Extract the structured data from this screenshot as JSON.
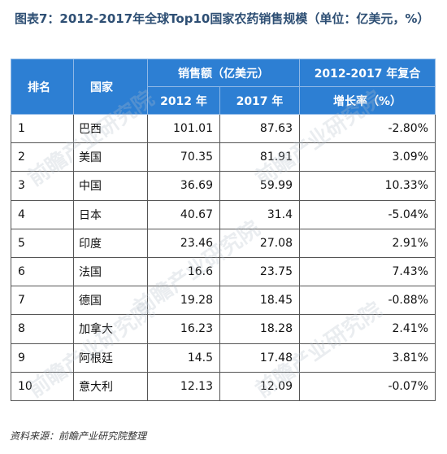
{
  "title": "图表7：2012-2017年全球Top10国家农药销售规模（单位：亿美元，%）",
  "headers": {
    "rank": "排名",
    "country": "国家",
    "sales_group": "销售额（亿美元）",
    "y2012": "2012 年",
    "y2017": "2017 年",
    "cagr_line1": "2012-2017 年复合",
    "cagr_line2": "增长率（%）"
  },
  "rows": [
    {
      "rank": "1",
      "country": "巴西",
      "v2012": "101.01",
      "v2017": "87.63",
      "cagr": "-2.80%"
    },
    {
      "rank": "2",
      "country": "美国",
      "v2012": "70.35",
      "v2017": "81.91",
      "cagr": "3.09%"
    },
    {
      "rank": "3",
      "country": "中国",
      "v2012": "36.69",
      "v2017": "59.99",
      "cagr": "10.33%"
    },
    {
      "rank": "4",
      "country": "日本",
      "v2012": "40.67",
      "v2017": "31.4",
      "cagr": "-5.04%"
    },
    {
      "rank": "5",
      "country": "印度",
      "v2012": "23.46",
      "v2017": "27.08",
      "cagr": "2.91%"
    },
    {
      "rank": "6",
      "country": "法国",
      "v2012": "16.6",
      "v2017": "23.75",
      "cagr": "7.43%"
    },
    {
      "rank": "7",
      "country": "德国",
      "v2012": "19.28",
      "v2017": "18.45",
      "cagr": "-0.88%"
    },
    {
      "rank": "8",
      "country": "加拿大",
      "v2012": "16.23",
      "v2017": "18.28",
      "cagr": "2.41%"
    },
    {
      "rank": "9",
      "country": "阿根廷",
      "v2012": "14.5",
      "v2017": "17.48",
      "cagr": "3.81%"
    },
    {
      "rank": "10",
      "country": "意大利",
      "v2012": "12.13",
      "v2017": "12.09",
      "cagr": "-0.07%"
    }
  ],
  "source": "资料来源：前瞻产业研究院整理",
  "watermark": "前瞻产业研究院"
}
